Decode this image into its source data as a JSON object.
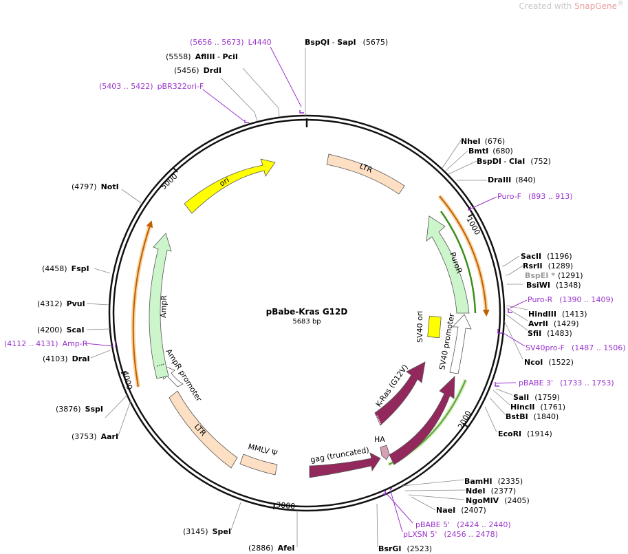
{
  "watermark": {
    "prefix": "Created with ",
    "brand": "SnapGene",
    "mark": "®"
  },
  "title": "pBabe-Kras G12D",
  "size": "5683 bp",
  "total_bp": 5683,
  "ticks": [
    "1000",
    "2000",
    "3000",
    "4000",
    "5000"
  ],
  "colors": {
    "backbone": "#111111",
    "ori": "#ffff00",
    "ltr": "#fde0c4",
    "resistance": "#ccf5cc",
    "promoter": "#ffffff",
    "kras": "#93285c",
    "primer": "#9933cc",
    "puro_overlay": "#f0a030",
    "green_overlay": "#3a8f1a",
    "grey_site": "#999999"
  },
  "features": [
    {
      "name": "ori",
      "kind": "ori"
    },
    {
      "name": "LTR",
      "kind": "ltr"
    },
    {
      "name": "PuroR",
      "kind": "resistance"
    },
    {
      "name": "SV40 ori",
      "kind": "ori"
    },
    {
      "name": "SV40 promoter",
      "kind": "promoter"
    },
    {
      "name": "K-Ras (G12V)",
      "kind": "cds"
    },
    {
      "name": "K-Ras",
      "kind": "cds"
    },
    {
      "name": "HA",
      "kind": "tag"
    },
    {
      "name": "gag (truncated)",
      "kind": "cds"
    },
    {
      "name": "MMLV Ψ",
      "kind": "ltr"
    },
    {
      "name": "LTR",
      "kind": "ltr"
    },
    {
      "name": "AmpR promoter",
      "kind": "promoter"
    },
    {
      "name": "AmpR",
      "kind": "resistance"
    }
  ],
  "sites": [
    {
      "name": "BspQI",
      "name2": "SapI",
      "pos": "(5675)"
    },
    {
      "name": "NheI",
      "pos": "(676)"
    },
    {
      "name": "BmtI",
      "pos": "(680)"
    },
    {
      "name": "BspDI",
      "name2": "ClaI",
      "pos": "(752)"
    },
    {
      "name": "DraIII",
      "pos": "(840)"
    },
    {
      "name": "SacII",
      "pos": "(1196)"
    },
    {
      "name": "RsrII",
      "pos": "(1289)"
    },
    {
      "name": "BspEI *",
      "pos": "(1291)",
      "grey": true
    },
    {
      "name": "BsiWI",
      "pos": "(1348)"
    },
    {
      "name": "HindIII",
      "pos": "(1413)"
    },
    {
      "name": "AvrII",
      "pos": "(1429)"
    },
    {
      "name": "SfiI",
      "pos": "(1483)"
    },
    {
      "name": "NcoI",
      "pos": "(1522)"
    },
    {
      "name": "SalI",
      "pos": "(1759)"
    },
    {
      "name": "HincII",
      "pos": "(1761)"
    },
    {
      "name": "BstBI",
      "pos": "(1840)"
    },
    {
      "name": "EcoRI",
      "pos": "(1914)"
    },
    {
      "name": "BamHI",
      "pos": "(2335)"
    },
    {
      "name": "NdeI",
      "pos": "(2377)"
    },
    {
      "name": "NgoMIV",
      "pos": "(2405)"
    },
    {
      "name": "NaeI",
      "pos": "(2407)"
    },
    {
      "name": "BsrGI",
      "pos": "(2523)"
    },
    {
      "name": "AfeI",
      "pos": "(2886)"
    },
    {
      "name": "SpeI",
      "pos": "(3145)"
    },
    {
      "name": "AarI",
      "pos": "(3753)"
    },
    {
      "name": "SspI",
      "pos": "(3876)"
    },
    {
      "name": "DraI",
      "pos": "(4103)"
    },
    {
      "name": "ScaI",
      "pos": "(4200)"
    },
    {
      "name": "PvuI",
      "pos": "(4312)"
    },
    {
      "name": "FspI",
      "pos": "(4458)"
    },
    {
      "name": "NotI",
      "pos": "(4797)"
    },
    {
      "name": "DrdI",
      "pos": "(5456)"
    },
    {
      "name": "AflIII",
      "name2": "PciI",
      "pos": "(5558)"
    }
  ],
  "primers": [
    {
      "name": "L4440",
      "range": "(5656 .. 5673)"
    },
    {
      "name": "pBR322ori-F",
      "range": "(5403 .. 5422)"
    },
    {
      "name": "Puro-F",
      "range": "(893 .. 913)"
    },
    {
      "name": "Puro-R",
      "range": "(1390 .. 1409)"
    },
    {
      "name": "SV40pro-F",
      "range": "(1487 .. 1506)"
    },
    {
      "name": "pBABE 3'",
      "range": "(1733 .. 1753)"
    },
    {
      "name": "pBABE 5'",
      "range": "(2424 .. 2440)"
    },
    {
      "name": "pLXSN 5'",
      "range": "(2456 .. 2478)"
    },
    {
      "name": "Amp-R",
      "range": "(4112 .. 4131)"
    }
  ]
}
